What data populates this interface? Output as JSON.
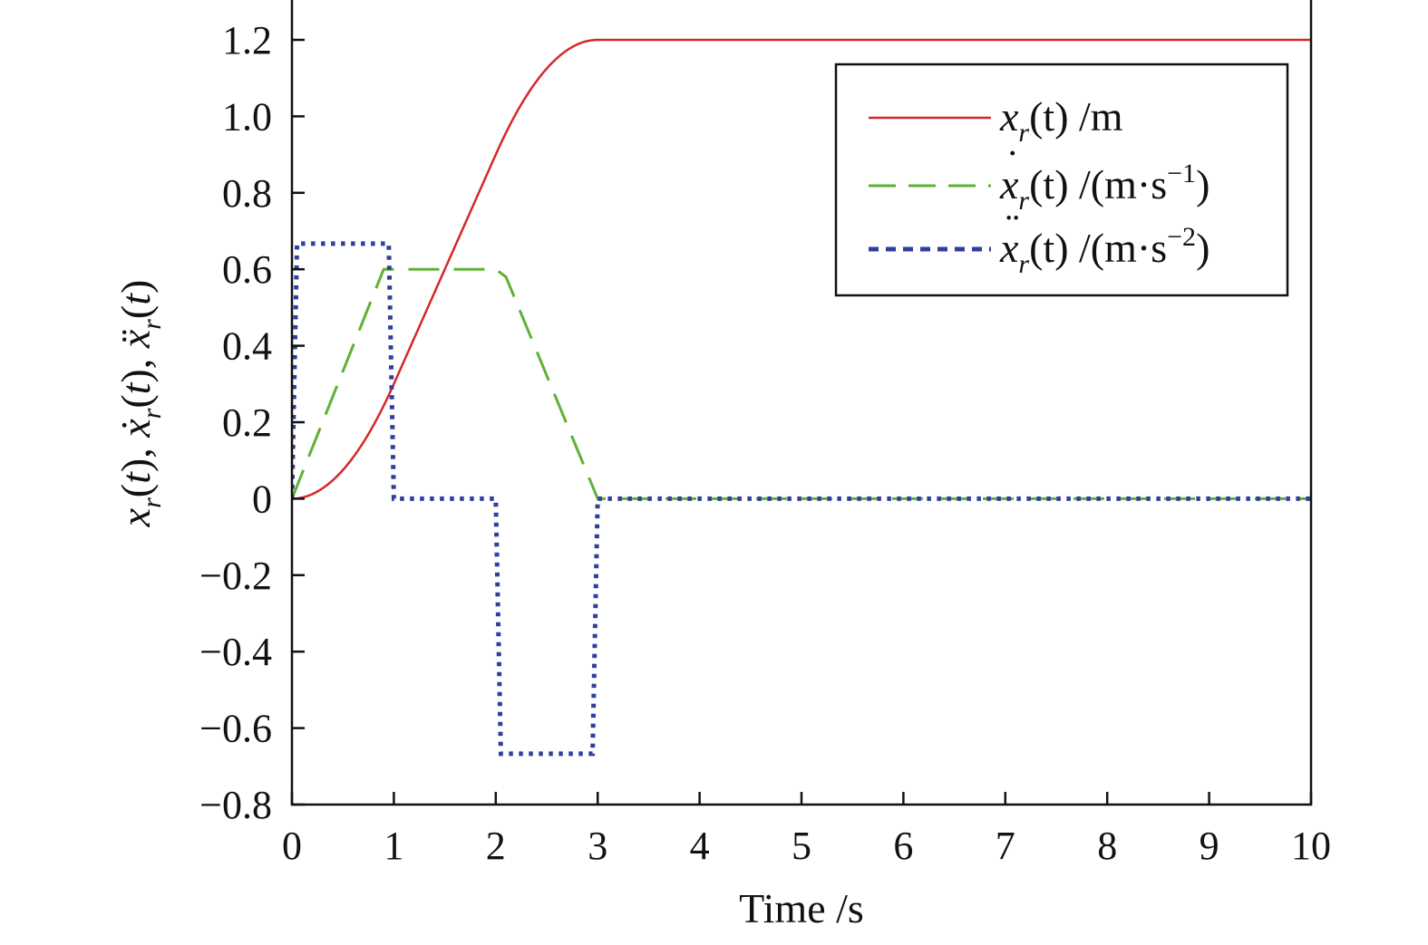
{
  "chart_data": {
    "type": "line",
    "xlabel": "Time /s",
    "ylabel": "x_r(t), ẋ_r(t), ẍ_r(t)",
    "xlim": [
      0,
      10
    ],
    "ylim": [
      -0.8,
      1.3
    ],
    "x_ticks": [
      "0",
      "1",
      "2",
      "3",
      "4",
      "5",
      "6",
      "7",
      "8",
      "9",
      "10"
    ],
    "y_ticks": [
      "−0.8",
      "−0.6",
      "−0.4",
      "−0.2",
      "0",
      "0.2",
      "0.4",
      "0.6",
      "0.8",
      "1.0",
      "1.2"
    ],
    "grid": false,
    "legend_position": "top-right",
    "series": [
      {
        "name": "x_r(t) /m",
        "color": "#d62728",
        "style": "solid",
        "x": [
          0,
          0.25,
          0.5,
          0.75,
          1.0,
          1.25,
          1.5,
          1.75,
          2.0,
          2.25,
          2.5,
          2.75,
          3.0,
          4,
          5,
          6,
          7,
          8,
          9,
          10
        ],
        "y": [
          0,
          0.021,
          0.083,
          0.188,
          0.3,
          0.45,
          0.6,
          0.75,
          0.9,
          1.013,
          1.117,
          1.179,
          1.2,
          1.2,
          1.2,
          1.2,
          1.2,
          1.2,
          1.2,
          1.2
        ]
      },
      {
        "name": "ẋ_r(t) /(m·s⁻¹)",
        "color": "#5fb135",
        "style": "dashed",
        "x": [
          0,
          0.9,
          2.0,
          2.1,
          3.0,
          10
        ],
        "y": [
          0,
          0.6,
          0.6,
          0.58,
          0,
          0
        ]
      },
      {
        "name": "ẍ_r(t) /(m·s⁻²)",
        "color": "#2e3f9e",
        "style": "dotted",
        "x": [
          0,
          0.05,
          0.95,
          1.0,
          2.0,
          2.05,
          2.95,
          3.0,
          10
        ],
        "y": [
          0,
          0.667,
          0.667,
          0,
          0,
          -0.667,
          -0.667,
          0,
          0
        ]
      }
    ],
    "legend": {
      "entries": [
        {
          "base": "x",
          "dots": "",
          "sub": "r",
          "arg": "(t)",
          "unit": "/m",
          "sup": "",
          "close": ""
        },
        {
          "base": "x",
          "dots": "˙",
          "sub": "r",
          "arg": "(t)",
          "unit": "/(m·s",
          "sup": "−1",
          "close": ")"
        },
        {
          "base": "x",
          "dots": "¨",
          "sub": "r",
          "arg": "(t)",
          "unit": "/(m·s",
          "sup": "−2",
          "close": ")"
        }
      ]
    }
  }
}
